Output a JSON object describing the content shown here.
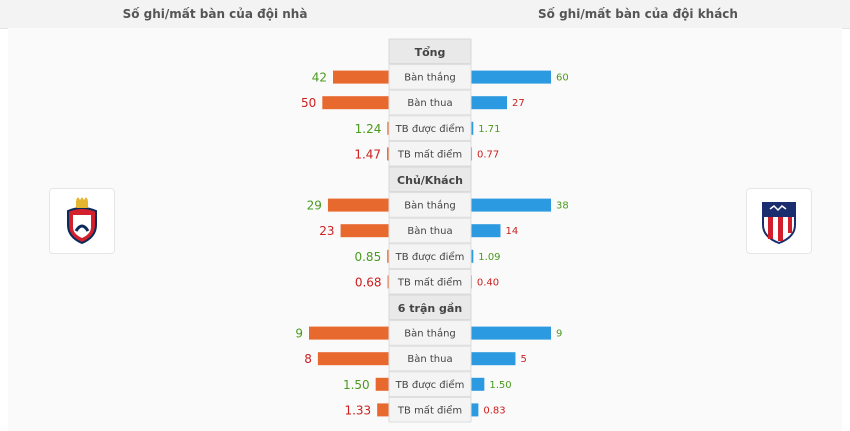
{
  "header": {
    "home_title": "Số ghi/mất bàn của đội nhà",
    "away_title": "Số ghi/mất bàn của đội khách"
  },
  "teams": {
    "home": {
      "logo": "osasuna-crest"
    },
    "away": {
      "logo": "atletico-madrid-crest"
    }
  },
  "colors": {
    "home_bar": "#e8692e",
    "away_bar": "#2c9ae0",
    "positive_text": "#4a9a1e",
    "negative_text": "#cc1f1f",
    "label_bg": "#f4f4f4",
    "section_bg": "#e9e9e9"
  },
  "chart_data": {
    "type": "bar",
    "orientation": "diverging-horizontal",
    "sections": [
      {
        "title": "Tổng",
        "rows": [
          {
            "label": "Bàn thắng",
            "home": "42",
            "away": "60",
            "home_good": true,
            "away_good": true
          },
          {
            "label": "Bàn thua",
            "home": "50",
            "away": "27",
            "home_good": false,
            "away_good": false
          },
          {
            "label": "TB được điểm",
            "home": "1.24",
            "away": "1.71",
            "home_good": true,
            "away_good": true
          },
          {
            "label": "TB mất điểm",
            "home": "1.47",
            "away": "0.77",
            "home_good": false,
            "away_good": false
          }
        ]
      },
      {
        "title": "Chủ/Khách",
        "rows": [
          {
            "label": "Bàn thắng",
            "home": "29",
            "away": "38",
            "home_good": true,
            "away_good": true
          },
          {
            "label": "Bàn thua",
            "home": "23",
            "away": "14",
            "home_good": false,
            "away_good": false
          },
          {
            "label": "TB được điểm",
            "home": "0.85",
            "away": "1.09",
            "home_good": true,
            "away_good": true
          },
          {
            "label": "TB mất điểm",
            "home": "0.68",
            "away": "0.40",
            "home_good": false,
            "away_good": false
          }
        ]
      },
      {
        "title": "6 trận gần",
        "rows": [
          {
            "label": "Bàn thắng",
            "home": "9",
            "away": "9",
            "home_good": true,
            "away_good": true
          },
          {
            "label": "Bàn thua",
            "home": "8",
            "away": "5",
            "home_good": false,
            "away_good": false
          },
          {
            "label": "TB được điểm",
            "home": "1.50",
            "away": "1.50",
            "home_good": true,
            "away_good": true
          },
          {
            "label": "TB mất điểm",
            "home": "1.33",
            "away": "0.83",
            "home_good": false,
            "away_good": false
          }
        ]
      }
    ]
  }
}
